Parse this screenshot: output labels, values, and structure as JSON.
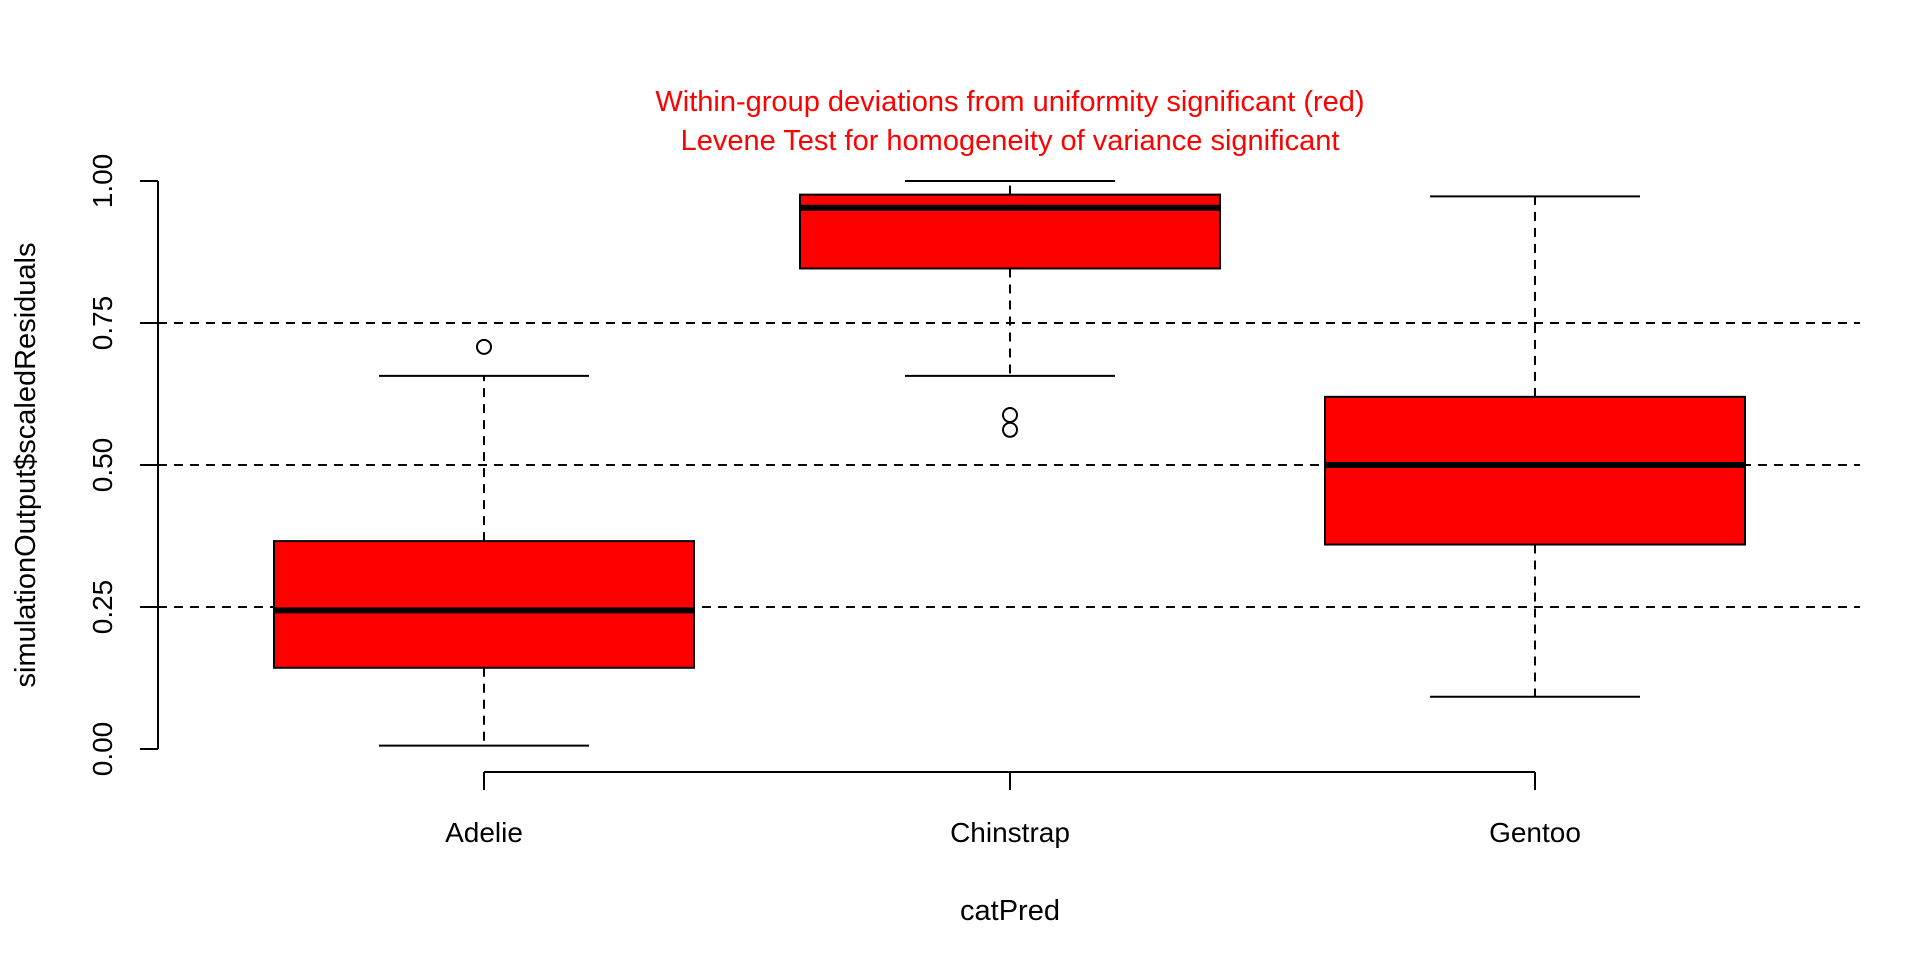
{
  "chart_data": {
    "type": "box",
    "title_lines": [
      "Within-group deviations from uniformity significant (red)",
      "Levene Test for homogeneity of variance significant"
    ],
    "title_color": "#ff0000",
    "xlabel": "catPred",
    "ylabel": "simulationOutput$scaledResiduals",
    "ylim": [
      0,
      1
    ],
    "y_ticks": [
      0,
      0.25,
      0.5,
      0.75,
      1
    ],
    "y_tick_labels": [
      "0.00",
      "0.25",
      "0.50",
      "0.75",
      "1.00"
    ],
    "reference_lines": [
      0.25,
      0.5,
      0.75
    ],
    "box_fill": "#ff0000",
    "categories": [
      "Adelie",
      "Chinstrap",
      "Gentoo"
    ],
    "boxes": [
      {
        "category": "Adelie",
        "whisker_low": 0.006,
        "q1": 0.143,
        "median": 0.244,
        "q3": 0.366,
        "whisker_high": 0.657,
        "outliers": [
          0.708
        ]
      },
      {
        "category": "Chinstrap",
        "whisker_low": 0.657,
        "q1": 0.846,
        "median": 0.953,
        "q3": 0.976,
        "whisker_high": 1.0,
        "outliers": [
          0.588,
          0.562
        ]
      },
      {
        "category": "Gentoo",
        "whisker_low": 0.092,
        "q1": 0.36,
        "median": 0.5,
        "q3": 0.62,
        "whisker_high": 0.973,
        "outliers": []
      }
    ]
  }
}
